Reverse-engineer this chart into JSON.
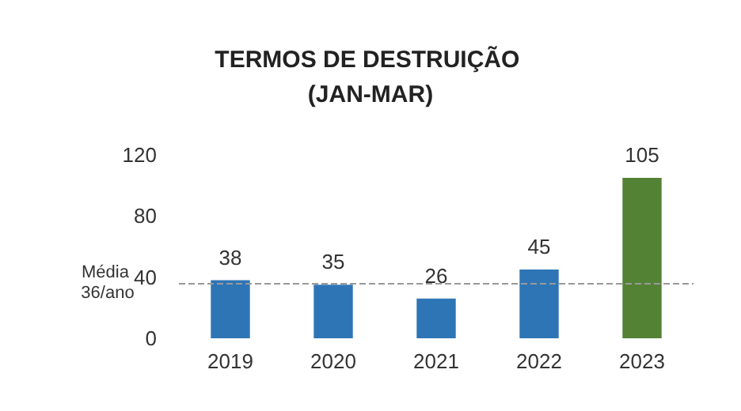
{
  "chart_data": {
    "type": "bar",
    "title": "TERMOS DE DESTRUIÇÃO (JAN-MAR)",
    "categories": [
      "2019",
      "2020",
      "2021",
      "2022",
      "2023"
    ],
    "values": [
      38,
      35,
      26,
      45,
      105
    ],
    "colors": [
      "#2e75b6",
      "#2e75b6",
      "#2e75b6",
      "#2e75b6",
      "#548235"
    ],
    "ylim": [
      0,
      120
    ],
    "yticks": [
      0,
      40,
      80,
      120
    ],
    "grid": false,
    "data_labels": true,
    "ref_lines": [
      {
        "axis": "y",
        "value": 36,
        "label": "Média 36/ano",
        "color": "#999999",
        "line_style": "dashed"
      }
    ]
  }
}
